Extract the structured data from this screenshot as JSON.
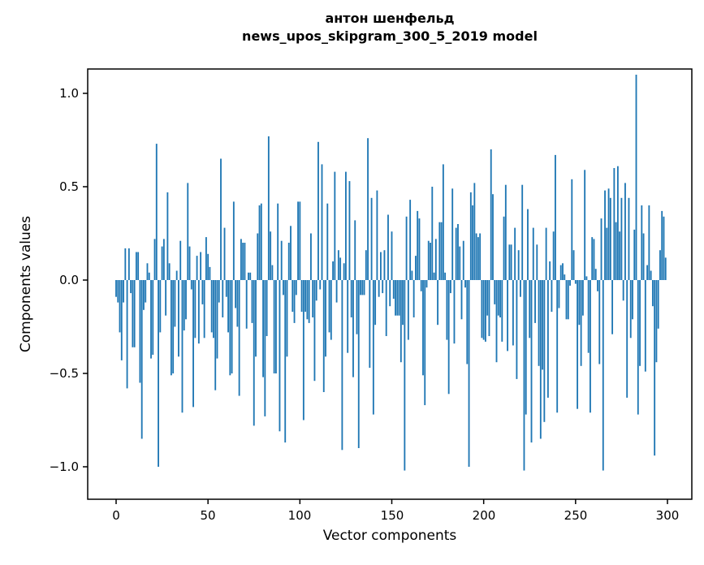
{
  "figure": {
    "title_line1": "антон шенфельд",
    "title_line2": "news_upos_skipgram_300_5_2019 model",
    "xlabel": "Vector components",
    "ylabel": "Components values",
    "y_tick_labels": [
      "1.0",
      "0.5",
      "0.0",
      "−0.5",
      "−1.0"
    ],
    "x_tick_labels": [
      "0",
      "50",
      "100",
      "150",
      "200",
      "250",
      "300"
    ],
    "bar_color": "#1f77b4",
    "axis_color": "#000000",
    "background_color": "#ffffff"
  },
  "chart_data": {
    "type": "bar",
    "title": "антон шенфельд\nnews_upos_skipgram_300_5_2019 model",
    "xlabel": "Vector components",
    "ylabel": "Components values",
    "legend": null,
    "grid": false,
    "x_ticks": [
      0,
      50,
      100,
      150,
      200,
      250,
      300
    ],
    "y_ticks": [
      1.0,
      0.5,
      0.0,
      -0.5,
      -1.0
    ],
    "xlim": [
      -15.5,
      313.5
    ],
    "ylim": [
      -1.17,
      1.13
    ],
    "n_bars": 300,
    "x_start_index": 0,
    "values": [
      -0.09,
      -0.12,
      -0.28,
      -0.43,
      -0.12,
      0.17,
      -0.58,
      0.17,
      -0.07,
      -0.36,
      -0.36,
      0.15,
      0.15,
      -0.55,
      -0.85,
      -0.16,
      -0.12,
      0.09,
      0.04,
      -0.42,
      -0.4,
      0.22,
      0.73,
      -1.0,
      -0.28,
      0.18,
      0.22,
      -0.19,
      0.47,
      0.09,
      -0.51,
      -0.5,
      -0.25,
      0.05,
      -0.41,
      0.21,
      -0.71,
      -0.27,
      -0.21,
      0.52,
      0.18,
      -0.05,
      -0.68,
      -0.31,
      0.13,
      -0.34,
      0.15,
      -0.13,
      -0.31,
      0.23,
      0.14,
      0.07,
      -0.28,
      -0.31,
      -0.59,
      -0.42,
      -0.12,
      0.65,
      -0.2,
      0.28,
      -0.09,
      -0.28,
      -0.51,
      -0.5,
      0.42,
      -0.15,
      -0.25,
      -0.62,
      0.22,
      0.2,
      0.2,
      -0.26,
      0.04,
      0.04,
      -0.23,
      -0.78,
      -0.41,
      0.25,
      0.4,
      0.41,
      -0.52,
      -0.73,
      -0.3,
      0.77,
      0.26,
      0.08,
      -0.5,
      -0.5,
      0.41,
      -0.81,
      0.21,
      -0.08,
      -0.87,
      -0.41,
      0.2,
      0.29,
      -0.17,
      -0.23,
      -0.08,
      0.42,
      0.42,
      -0.17,
      -0.75,
      -0.17,
      -0.21,
      -0.23,
      0.25,
      -0.2,
      -0.54,
      -0.11,
      0.74,
      -0.05,
      0.62,
      -0.6,
      -0.41,
      0.41,
      -0.28,
      -0.32,
      0.1,
      0.58,
      -0.12,
      0.16,
      0.12,
      -0.91,
      0.09,
      0.58,
      -0.39,
      0.53,
      -0.2,
      -0.52,
      0.32,
      -0.29,
      -0.9,
      -0.08,
      -0.08,
      -0.08,
      0.16,
      0.76,
      -0.47,
      0.44,
      -0.72,
      -0.24,
      0.48,
      -0.09,
      0.15,
      -0.07,
      0.16,
      -0.3,
      0.35,
      -0.14,
      0.26,
      -0.1,
      -0.19,
      -0.19,
      -0.19,
      -0.44,
      -0.24,
      -1.02,
      0.34,
      -0.32,
      0.43,
      0.05,
      -0.2,
      0.13,
      0.37,
      0.33,
      -0.06,
      -0.51,
      -0.67,
      -0.04,
      0.21,
      0.2,
      0.5,
      0.04,
      0.22,
      -0.24,
      0.31,
      0.31,
      0.62,
      0.04,
      -0.32,
      -0.61,
      -0.07,
      0.49,
      -0.34,
      0.28,
      0.3,
      0.18,
      -0.21,
      0.21,
      -0.04,
      -0.45,
      -1.0,
      0.47,
      0.4,
      0.52,
      0.25,
      0.23,
      0.25,
      -0.31,
      -0.32,
      -0.33,
      -0.19,
      -0.3,
      0.7,
      0.46,
      -0.13,
      -0.44,
      -0.19,
      -0.2,
      -0.33,
      0.34,
      0.51,
      -0.38,
      0.19,
      0.19,
      -0.35,
      0.28,
      -0.53,
      0.16,
      -0.09,
      0.51,
      -1.02,
      -0.72,
      0.38,
      -0.31,
      -0.87,
      0.28,
      -0.23,
      0.19,
      -0.46,
      -0.85,
      -0.48,
      -0.76,
      0.28,
      -0.63,
      0.1,
      -0.17,
      0.26,
      0.67,
      -0.71,
      -0.15,
      0.08,
      0.09,
      0.03,
      -0.21,
      -0.21,
      -0.03,
      0.54,
      0.16,
      -0.02,
      -0.69,
      -0.24,
      -0.46,
      -0.19,
      0.59,
      0.02,
      -0.39,
      -0.71,
      0.23,
      0.22,
      0.06,
      -0.06,
      -0.45,
      0.33,
      -1.02,
      0.48,
      0.28,
      0.49,
      0.44,
      -0.29,
      0.6,
      0.31,
      0.61,
      0.26,
      0.44,
      -0.11,
      0.52,
      -0.63,
      0.44,
      -0.31,
      -0.21,
      0.27,
      1.1,
      -0.72,
      -0.46,
      0.4,
      0.25,
      -0.49,
      0.08,
      0.4,
      0.05,
      -0.14,
      -0.94,
      -0.44,
      -0.26,
      0.16,
      0.37,
      0.34,
      0.12
    ]
  }
}
